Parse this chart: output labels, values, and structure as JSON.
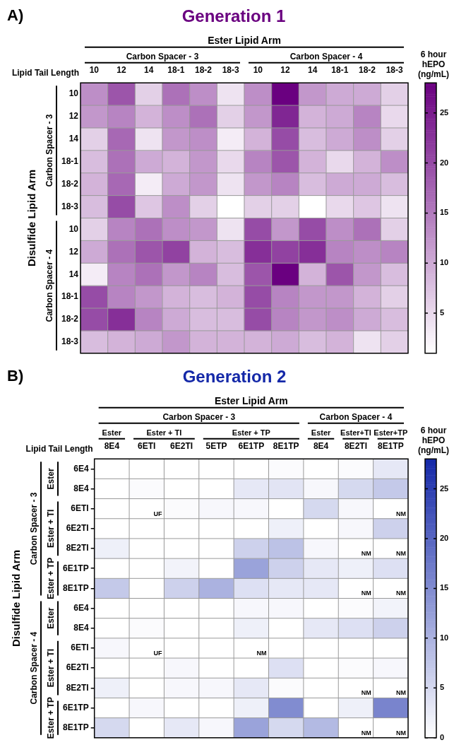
{
  "chart_data": [
    {
      "type": "heatmap",
      "title": "Generation 1",
      "xlabel": "Lipid Tail Length",
      "ylabel": "Disulfide Lipid Arm",
      "clabel": "6 hour hEPO (ng/mL)",
      "color": "#6a0080",
      "annotations": [
        "A)",
        "Ester Lipid Arm",
        "Carbon Spacer - 3",
        "Carbon Spacer - 4",
        "Carbon Spacer - 3",
        "Carbon Spacer - 4"
      ],
      "categories": [
        "10",
        "12",
        "14",
        "18-1",
        "18-2",
        "18-3",
        "10",
        "12",
        "14",
        "18-1",
        "18-2",
        "18-3"
      ],
      "y_categories": [
        "10",
        "12",
        "14",
        "18-1",
        "18-2",
        "18-3",
        "10",
        "12",
        "14",
        "18-1",
        "18-2",
        "18-3"
      ],
      "cells": [
        [
          13,
          19,
          6,
          16,
          13,
          4,
          13,
          28,
          12,
          10,
          10,
          6
        ],
        [
          12,
          14,
          9,
          13,
          16,
          6,
          12,
          24,
          9,
          10,
          14,
          5
        ],
        [
          6,
          17,
          4,
          12,
          13,
          3,
          9,
          20,
          8,
          10,
          13,
          6
        ],
        [
          8,
          16,
          10,
          9,
          12,
          5,
          14,
          19,
          9,
          5,
          9,
          13
        ],
        [
          9,
          17,
          3,
          10,
          12,
          4,
          12,
          14,
          8,
          10,
          10,
          8
        ],
        [
          8,
          20,
          7,
          13,
          6,
          1,
          6,
          6,
          1,
          5,
          7,
          4
        ],
        [
          6,
          14,
          16,
          13,
          12,
          4,
          20,
          12,
          20,
          13,
          16,
          6
        ],
        [
          10,
          16,
          19,
          21,
          9,
          8,
          23,
          21,
          23,
          14,
          13,
          14
        ],
        [
          3,
          14,
          16,
          12,
          14,
          8,
          19,
          28,
          9,
          19,
          12,
          8
        ],
        [
          20,
          14,
          12,
          9,
          8,
          9,
          20,
          14,
          12,
          12,
          9,
          6
        ],
        [
          20,
          23,
          14,
          10,
          8,
          8,
          20,
          14,
          12,
          13,
          10,
          8
        ],
        [
          8,
          9,
          10,
          12,
          9,
          9,
          9,
          10,
          8,
          9,
          4,
          6
        ]
      ],
      "clim": [
        1,
        28
      ],
      "cticks": [
        5,
        10,
        15,
        20,
        25
      ]
    },
    {
      "type": "heatmap",
      "title": "Generation 2",
      "xlabel": "Lipid Tail Length",
      "ylabel": "Disulfide Lipid Arm",
      "clabel": "6 hour hEPO (ng/mL)",
      "color": "#1428a8",
      "annotations": [
        "B)",
        "Ester Lipid Arm",
        "Carbon Spacer - 3",
        "Carbon Spacer - 4",
        "Ester",
        "Ester + TI",
        "Ester + TP",
        "Ester",
        "Ester+TI",
        "Ester+TP",
        "Carbon Spacer - 3",
        "Carbon Spacer - 4",
        "Ester",
        "Ester + TI",
        "Ester + TP",
        "Ester",
        "Ester + TI",
        "Ester + TP"
      ],
      "categories": [
        "8E4",
        "6ETI",
        "6E2TI",
        "5ETP",
        "6E1TP",
        "8E1TP",
        "8E4",
        "8E2TI",
        "8E1TP"
      ],
      "y_categories": [
        "6E4",
        "8E4",
        "6ETI",
        "6E2TI",
        "8E2TI",
        "6E1TP",
        "8E1TP",
        "6E4",
        "8E4",
        "6ETI",
        "6E2TI",
        "8E2TI",
        "6E1TP",
        "8E1TP"
      ],
      "cells": [
        [
          0,
          0,
          0,
          0,
          0,
          0.5,
          0,
          0.5,
          3
        ],
        [
          0,
          0.5,
          0,
          0,
          3,
          3.5,
          1,
          5,
          7
        ],
        [
          0,
          null,
          0.5,
          1,
          1,
          0,
          5,
          1,
          null
        ],
        [
          0,
          0,
          0,
          0,
          0,
          2,
          0,
          1,
          6
        ],
        [
          2,
          0,
          0,
          0,
          6,
          8,
          1,
          null,
          null
        ],
        [
          0,
          0,
          1.5,
          0,
          12,
          6,
          3,
          2,
          4
        ],
        [
          7,
          0,
          6,
          10,
          4,
          3,
          3,
          null,
          null
        ],
        [
          0,
          0,
          0,
          0,
          1,
          1,
          0,
          0.5,
          1.5
        ],
        [
          0,
          0.5,
          0,
          0,
          2,
          0,
          3,
          4,
          6
        ],
        [
          1,
          null,
          0,
          0,
          null,
          0,
          0,
          0,
          0
        ],
        [
          0,
          0,
          1,
          0,
          0,
          4,
          0,
          0.5,
          1
        ],
        [
          2,
          0,
          1,
          1,
          3,
          0.5,
          0,
          null,
          null
        ],
        [
          0,
          1,
          0,
          0,
          2,
          15,
          0,
          2,
          16
        ],
        [
          5,
          0,
          3,
          1,
          12,
          5,
          9,
          null,
          null
        ]
      ],
      "cell_labels": [
        [
          null,
          null,
          null,
          null,
          null,
          null,
          null,
          null,
          null
        ],
        [
          null,
          null,
          null,
          null,
          null,
          null,
          null,
          null,
          null
        ],
        [
          null,
          "UF",
          null,
          null,
          null,
          null,
          null,
          null,
          "NM"
        ],
        [
          null,
          null,
          null,
          null,
          null,
          null,
          null,
          null,
          null
        ],
        [
          null,
          null,
          null,
          null,
          null,
          null,
          null,
          "NM",
          "NM"
        ],
        [
          null,
          null,
          null,
          null,
          null,
          null,
          null,
          null,
          null
        ],
        [
          null,
          null,
          null,
          null,
          null,
          null,
          null,
          "NM",
          "NM"
        ],
        [
          null,
          null,
          null,
          null,
          null,
          null,
          null,
          null,
          null
        ],
        [
          null,
          null,
          null,
          null,
          null,
          null,
          null,
          null,
          null
        ],
        [
          null,
          "UF",
          null,
          null,
          "NM",
          null,
          null,
          null,
          null
        ],
        [
          null,
          null,
          null,
          null,
          null,
          null,
          null,
          null,
          null
        ],
        [
          null,
          null,
          null,
          null,
          null,
          null,
          null,
          "NM",
          "NM"
        ],
        [
          null,
          null,
          null,
          null,
          null,
          null,
          null,
          null,
          null
        ],
        [
          null,
          null,
          null,
          null,
          null,
          null,
          null,
          "NM",
          "NM"
        ]
      ],
      "clim": [
        0,
        28
      ],
      "cticks": [
        0,
        5,
        10,
        15,
        20,
        25
      ]
    }
  ]
}
